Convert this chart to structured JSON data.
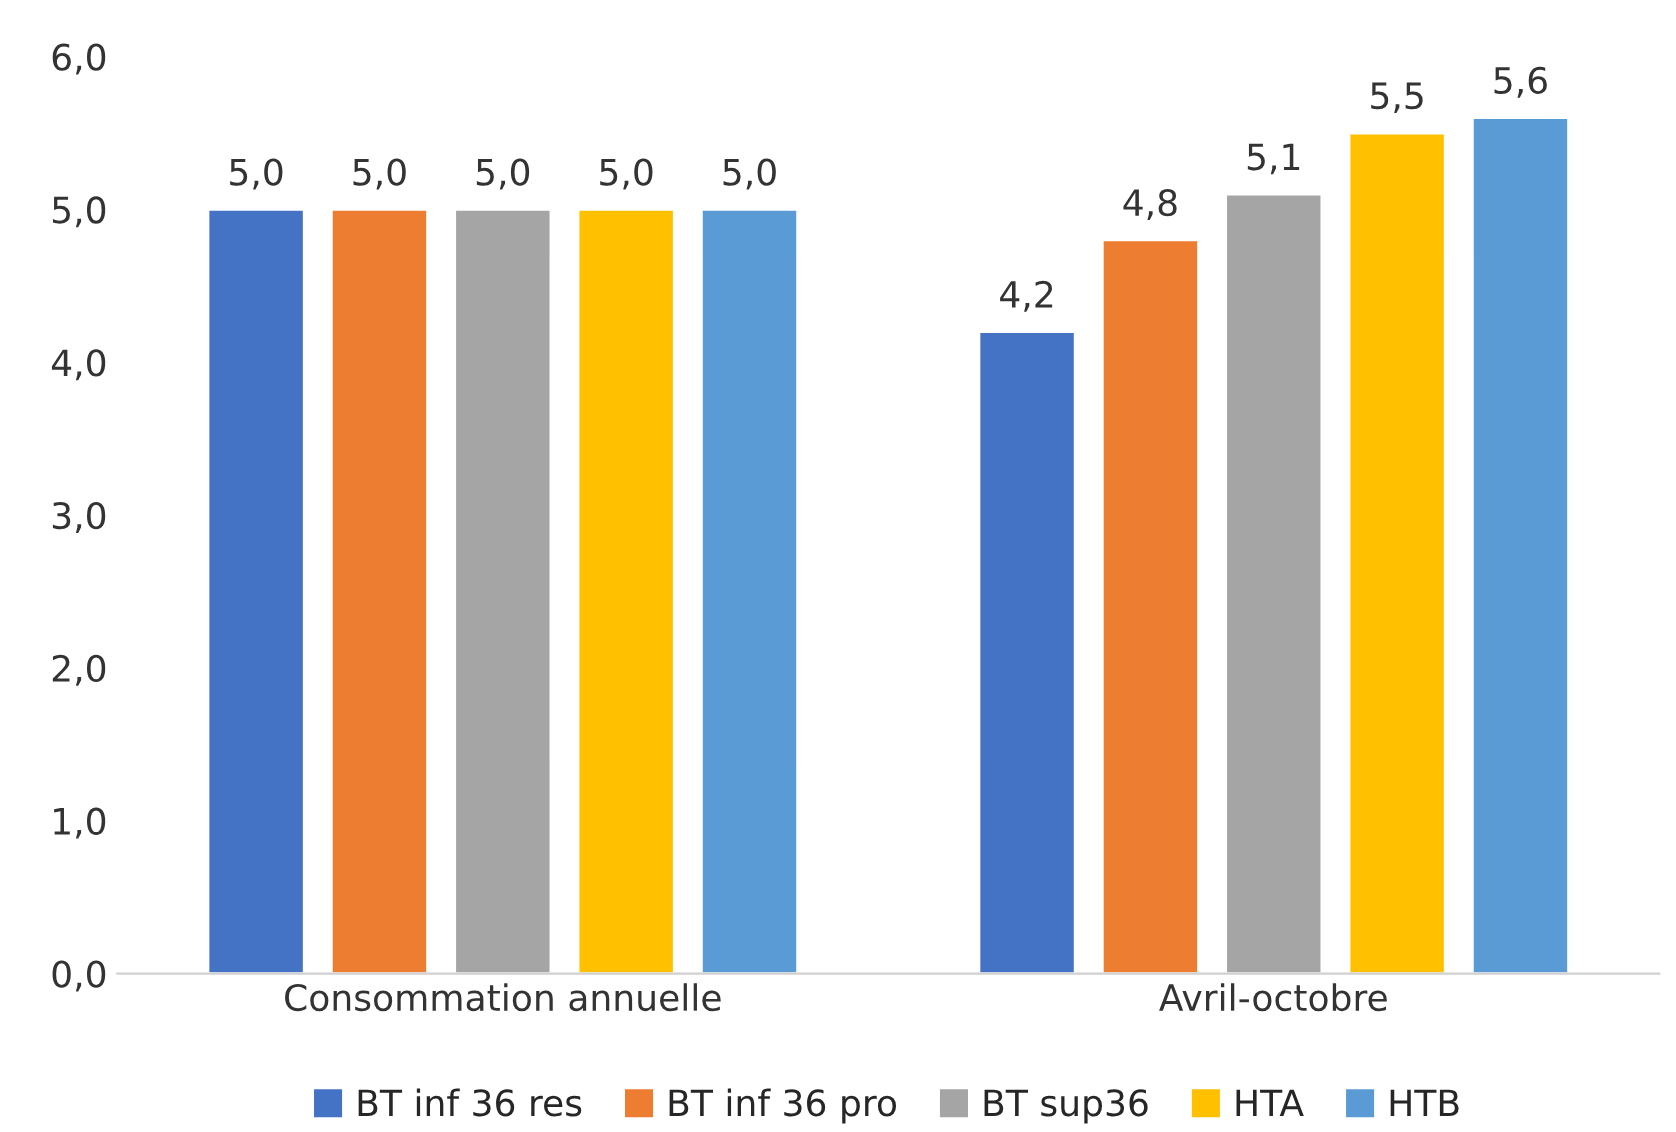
{
  "chart_data": {
    "type": "bar",
    "categories": [
      "Consommation annuelle",
      "Avril-octobre"
    ],
    "series": [
      {
        "name": "BT inf 36 res",
        "color": "#4472c4",
        "values": [
          5.0,
          4.2
        ],
        "value_labels": [
          "5,0",
          "4,2"
        ]
      },
      {
        "name": "BT inf 36 pro",
        "color": "#ed7d31",
        "values": [
          5.0,
          4.8
        ],
        "value_labels": [
          "5,0",
          "4,8"
        ]
      },
      {
        "name": "BT sup36",
        "color": "#a5a5a5",
        "values": [
          5.0,
          5.1
        ],
        "value_labels": [
          "5,0",
          "5,1"
        ]
      },
      {
        "name": "HTA",
        "color": "#ffc000",
        "values": [
          5.0,
          5.5
        ],
        "value_labels": [
          "5,0",
          "5,5"
        ]
      },
      {
        "name": "HTB",
        "color": "#5b9bd5",
        "values": [
          5.0,
          5.6
        ],
        "value_labels": [
          "5,0",
          "5,6"
        ]
      }
    ],
    "ylim": [
      0,
      6
    ],
    "yticks": [
      {
        "value": 0,
        "label": "0,0"
      },
      {
        "value": 1,
        "label": "1,0"
      },
      {
        "value": 2,
        "label": "2,0"
      },
      {
        "value": 3,
        "label": "3,0"
      },
      {
        "value": 4,
        "label": "4,0"
      },
      {
        "value": 5,
        "label": "5,0"
      },
      {
        "value": 6,
        "label": "6,0"
      }
    ],
    "grid": false,
    "legend": "bottom"
  }
}
